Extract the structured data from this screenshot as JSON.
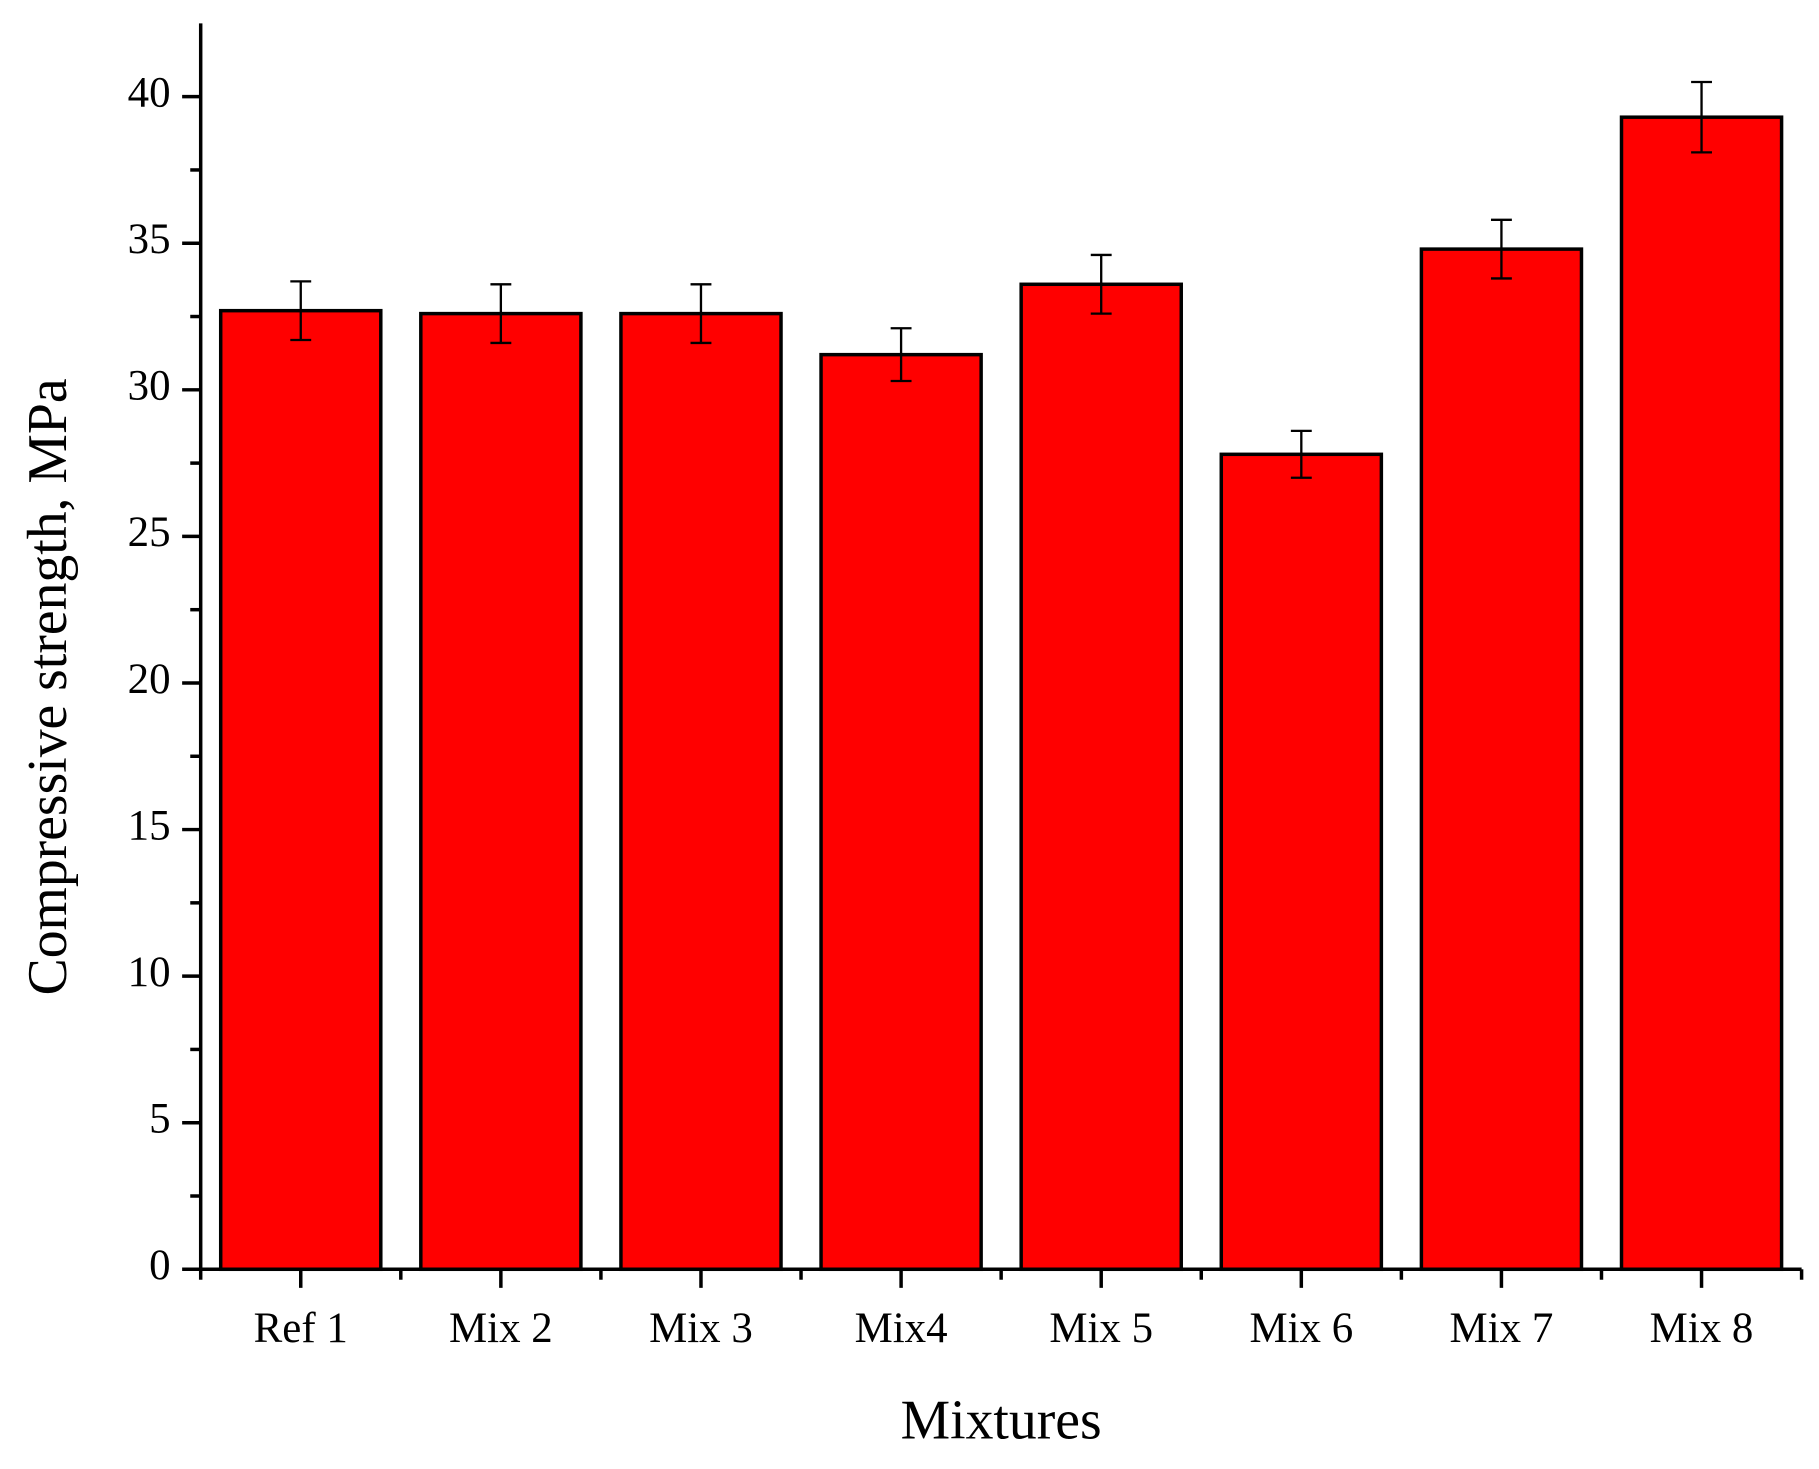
{
  "chart_data": {
    "type": "bar",
    "x_label": "Mixtures",
    "y_label": "Compressive strength, MPa",
    "categories": [
      "Ref 1",
      "Mix 2",
      "Mix 3",
      "Mix4",
      "Mix 5",
      "Mix 6",
      "Mix 7",
      "Mix 8"
    ],
    "values": [
      32.7,
      32.6,
      32.6,
      31.2,
      33.6,
      27.8,
      34.8,
      39.3
    ],
    "errors": [
      1.0,
      1.0,
      1.0,
      0.9,
      1.0,
      0.8,
      1.0,
      1.2
    ],
    "color": "#ff0000",
    "ylim": [
      0,
      42.5
    ],
    "yticks": [
      0,
      5,
      10,
      15,
      20,
      25,
      30,
      35,
      40
    ]
  }
}
